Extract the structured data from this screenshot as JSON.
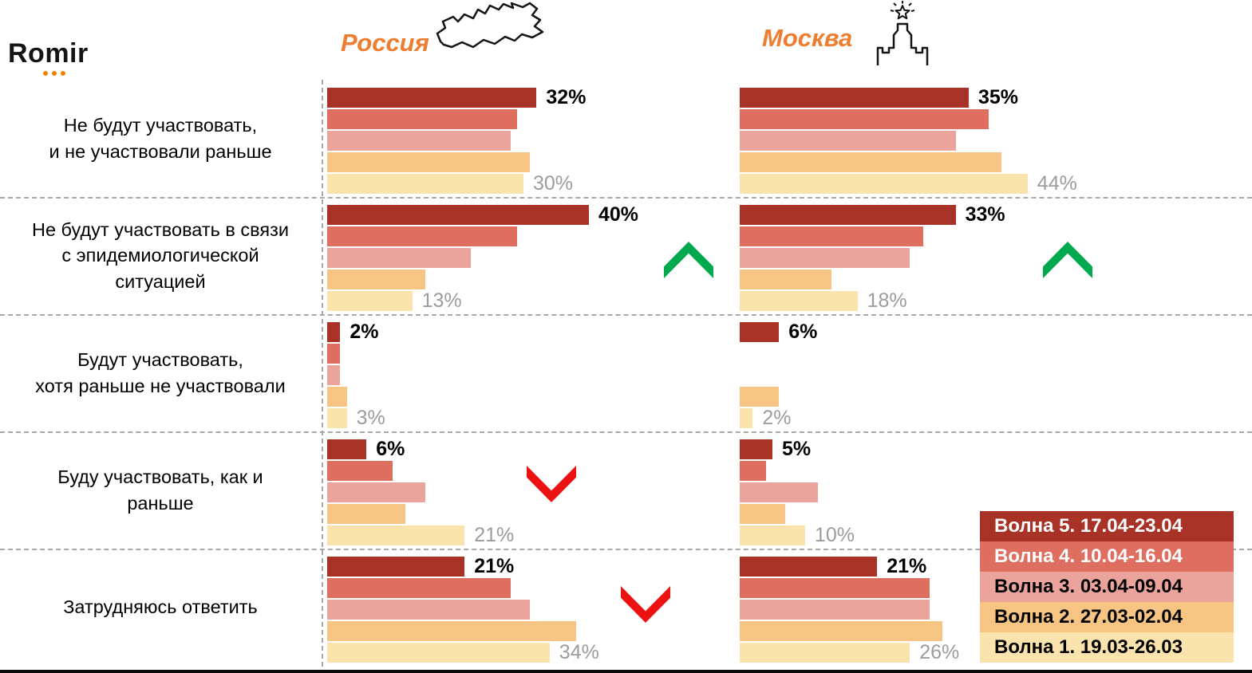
{
  "header": {
    "logo_text": "Romir",
    "russia": {
      "label": "Россия"
    },
    "moscow": {
      "label": "Москва"
    }
  },
  "legend": {
    "items": [
      {
        "label": "Волна 5. 17.04-23.04",
        "color": "#A93226",
        "text_color": "#FFFFFF"
      },
      {
        "label": "Волна 4. 10.04-16.04",
        "color": "#DD6E60",
        "text_color": "#FFFFFF"
      },
      {
        "label": "Волна 3. 03.04-09.04",
        "color": "#EBA49C",
        "text_color": "#000000"
      },
      {
        "label": "Волна 2. 27.03-02.04",
        "color": "#F6C483",
        "text_color": "#000000"
      },
      {
        "label": "Волна 1. 19.03-26.03",
        "color": "#FBE3AE",
        "text_color": "#000000"
      }
    ]
  },
  "chart_data": {
    "type": "bar",
    "orientation": "horizontal",
    "unit": "%",
    "columns": [
      "Россия",
      "Москва"
    ],
    "value_labels_shown": [
      "first_wave",
      "last_wave"
    ],
    "waves": [
      {
        "name": "Волна 5. 17.04-23.04",
        "color": "#A93226"
      },
      {
        "name": "Волна 4. 10.04-16.04",
        "color": "#DD6E60"
      },
      {
        "name": "Волна 3. 03.04-09.04",
        "color": "#EBA49C"
      },
      {
        "name": "Волна 2. 27.03-02.04",
        "color": "#F6C483"
      },
      {
        "name": "Волна 1. 19.03-26.03",
        "color": "#FBE3AE"
      }
    ],
    "arrow_colors": {
      "up": "#00A94E",
      "down": "#EE1111"
    },
    "rows": [
      {
        "label": "Не будут участвовать,\nи не участвовали раньше",
        "russia": {
          "values": [
            32,
            29,
            28,
            31,
            30
          ],
          "top_label": "32%",
          "bottom_label": "30%",
          "arrow": null
        },
        "moscow": {
          "values": [
            35,
            38,
            33,
            40,
            44
          ],
          "top_label": "35%",
          "bottom_label": "44%",
          "arrow": null
        }
      },
      {
        "label": "Не будут участвовать в связи\nс эпидемиологической\nситуацией",
        "russia": {
          "values": [
            40,
            29,
            22,
            15,
            13
          ],
          "top_label": "40%",
          "bottom_label": "13%",
          "arrow": "up"
        },
        "moscow": {
          "values": [
            33,
            28,
            26,
            14,
            18
          ],
          "top_label": "33%",
          "bottom_label": "18%",
          "arrow": "up"
        }
      },
      {
        "label": "Будут участвовать,\nхотя раньше не участвовали",
        "russia": {
          "values": [
            2,
            2,
            2,
            3,
            3
          ],
          "top_label": "2%",
          "bottom_label": "3%",
          "arrow": null
        },
        "moscow": {
          "values": [
            6,
            0,
            0,
            6,
            2
          ],
          "top_label": "6%",
          "bottom_label": "2%",
          "arrow": null
        }
      },
      {
        "label": "Буду участвовать, как и\nраньше",
        "russia": {
          "values": [
            6,
            10,
            15,
            12,
            21
          ],
          "top_label": "6%",
          "bottom_label": "21%",
          "arrow": "down"
        },
        "moscow": {
          "values": [
            5,
            4,
            12,
            7,
            10
          ],
          "top_label": "5%",
          "bottom_label": "10%",
          "arrow": null
        }
      },
      {
        "label": "Затрудняюсь ответить",
        "russia": {
          "values": [
            21,
            28,
            31,
            38,
            34
          ],
          "top_label": "21%",
          "bottom_label": "34%",
          "arrow": "down"
        },
        "moscow": {
          "values": [
            21,
            29,
            29,
            31,
            26
          ],
          "top_label": "21%",
          "bottom_label": "26%",
          "arrow": null
        }
      }
    ]
  }
}
